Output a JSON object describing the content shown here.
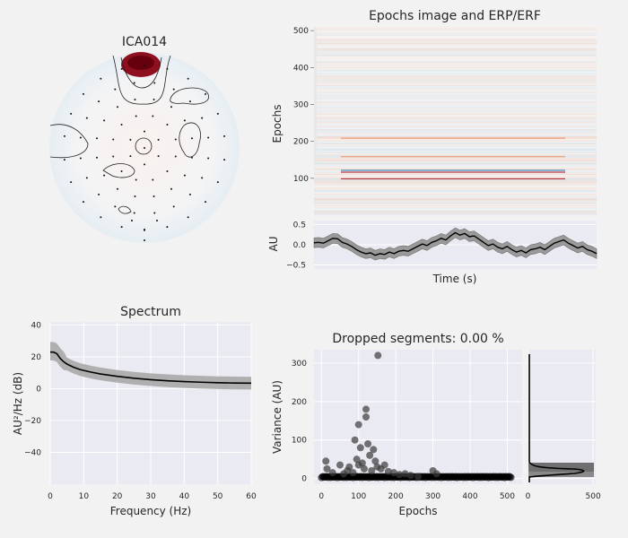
{
  "topomap": {
    "title": "ICA014"
  },
  "chart_data": [
    {
      "type": "heatmap",
      "title": "Epochs image and ERP/ERF",
      "xlabel": "",
      "ylabel": "Epochs",
      "ylim": [
        0,
        510
      ],
      "yticks": [
        100,
        200,
        300,
        400,
        500
      ],
      "colormap": "RdBu_r",
      "notable_rows": [
        {
          "epoch": 123,
          "color": "#1f78b4"
        },
        {
          "epoch": 118,
          "color": "#b2182b"
        },
        {
          "epoch": 100,
          "color": "#b2182b"
        },
        {
          "epoch": 210,
          "color": "#ef8a62"
        },
        {
          "epoch": 160,
          "color": "#ef8a62"
        }
      ]
    },
    {
      "type": "line",
      "title": "",
      "xlabel": "Time (s)",
      "ylabel": "AU",
      "ylim": [
        -0.6,
        0.6
      ],
      "yticks": [
        "0.5",
        "0.0",
        "−0.5"
      ],
      "series": [
        {
          "y": [
            0.05,
            0.06,
            0.04,
            0.1,
            0.16,
            0.15,
            0.06,
            0.02,
            -0.04,
            -0.12,
            -0.18,
            -0.22,
            -0.2,
            -0.26,
            -0.22,
            -0.24,
            -0.18,
            -0.22,
            -0.16,
            -0.14,
            -0.16,
            -0.1,
            -0.04,
            0.02,
            -0.02,
            0.06,
            0.1,
            0.16,
            0.12,
            0.22,
            0.3,
            0.24,
            0.28,
            0.2,
            0.22,
            0.14,
            0.06,
            -0.02,
            0.02,
            -0.06,
            -0.1,
            -0.04,
            -0.12,
            -0.18,
            -0.14,
            -0.2,
            -0.12,
            -0.1,
            -0.06,
            -0.12,
            -0.04,
            0.04,
            0.08,
            0.12,
            0.04,
            -0.02,
            -0.08,
            -0.04,
            -0.12,
            -0.16,
            -0.22
          ],
          "band": 0.12
        }
      ]
    },
    {
      "type": "line",
      "title": "Spectrum",
      "xlabel": "Frequency (Hz)",
      "ylabel": "AU²/Hz (dB)",
      "xlim": [
        0,
        60
      ],
      "ylim": [
        -60,
        42
      ],
      "xticks": [
        "0",
        "10",
        "20",
        "30",
        "40",
        "50",
        "60"
      ],
      "yticks": [
        "40",
        "20",
        "0",
        "−20",
        "−40"
      ],
      "series": [
        {
          "x": [
            0,
            1,
            2,
            3,
            4,
            5,
            7,
            9,
            12,
            15,
            20,
            25,
            30,
            35,
            40,
            45,
            50,
            55,
            60
          ],
          "y": [
            23,
            23,
            22,
            19,
            17,
            15.5,
            13.5,
            12,
            10.5,
            9.3,
            7.8,
            6.6,
            5.7,
            5,
            4.5,
            4.1,
            3.8,
            3.6,
            3.5
          ],
          "band": 4
        }
      ]
    },
    {
      "type": "scatter",
      "title": "Dropped segments: 0.00 %",
      "xlabel": "Epochs",
      "ylabel": "Variance (AU)",
      "xlim": [
        -20,
        540
      ],
      "ylim": [
        -15,
        335
      ],
      "xticks": [
        "0",
        "100",
        "200",
        "300",
        "400",
        "500"
      ],
      "yticks": [
        "0",
        "100",
        "200",
        "300"
      ],
      "outliers": [
        [
          152,
          320
        ],
        [
          100,
          140
        ],
        [
          120,
          180
        ],
        [
          120,
          160
        ],
        [
          90,
          100
        ],
        [
          105,
          80
        ],
        [
          125,
          90
        ],
        [
          140,
          75
        ],
        [
          95,
          50
        ],
        [
          130,
          60
        ],
        [
          110,
          40
        ],
        [
          150,
          30
        ],
        [
          160,
          25
        ],
        [
          170,
          35
        ],
        [
          70,
          20
        ],
        [
          75,
          30
        ],
        [
          12,
          45
        ],
        [
          15,
          25
        ],
        [
          30,
          15
        ],
        [
          50,
          35
        ],
        [
          100,
          35
        ],
        [
          115,
          25
        ],
        [
          135,
          20
        ],
        [
          145,
          45
        ],
        [
          195,
          15
        ],
        [
          210,
          10
        ],
        [
          300,
          20
        ],
        [
          310,
          12
        ],
        [
          240,
          8
        ],
        [
          260,
          5
        ],
        [
          60,
          12
        ],
        [
          85,
          15
        ],
        [
          180,
          18
        ],
        [
          225,
          12
        ]
      ]
    },
    {
      "type": "line",
      "title": "",
      "xlabel": "",
      "ylabel": "",
      "xlim": [
        -10,
        520
      ],
      "xticks": [
        "0",
        "500"
      ]
    }
  ]
}
